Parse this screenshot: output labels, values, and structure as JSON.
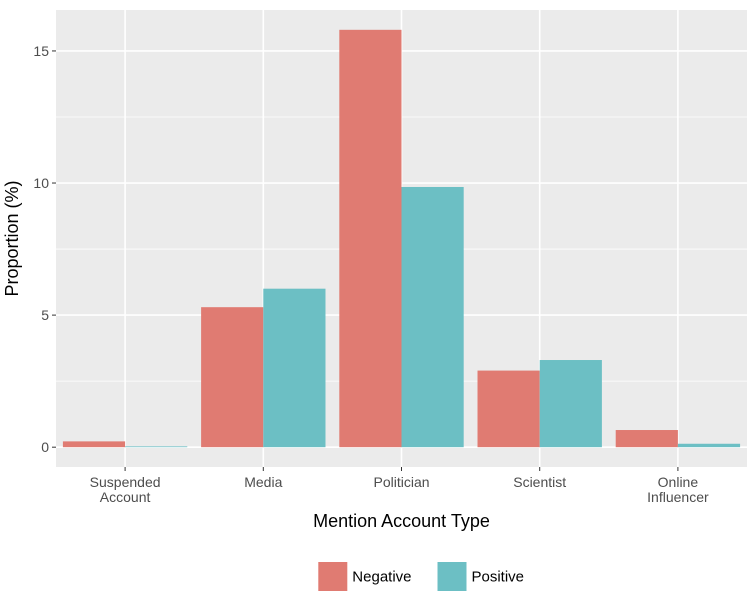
{
  "chart_data": {
    "type": "bar",
    "title": "",
    "xlabel": "Mention Account Type",
    "ylabel": "Proportion (%)",
    "categories": [
      [
        "Suspended",
        "Account"
      ],
      [
        "Media"
      ],
      [
        "Politician"
      ],
      [
        "Scientist"
      ],
      [
        "Online",
        "Influencer"
      ]
    ],
    "series": [
      {
        "name": "Negative",
        "color": "#e07b72",
        "values": [
          0.22,
          5.3,
          15.8,
          2.9,
          0.65
        ]
      },
      {
        "name": "Positive",
        "color": "#6cbfc4",
        "values": [
          0.03,
          6.0,
          9.85,
          3.3,
          0.13
        ]
      }
    ],
    "yticks": [
      0,
      5,
      10,
      15
    ],
    "ylim": [
      -0.75,
      16.55
    ],
    "grid": true,
    "legend_position": "bottom",
    "colors": {
      "panel": "#ebebeb",
      "grid": "#ffffff"
    }
  }
}
